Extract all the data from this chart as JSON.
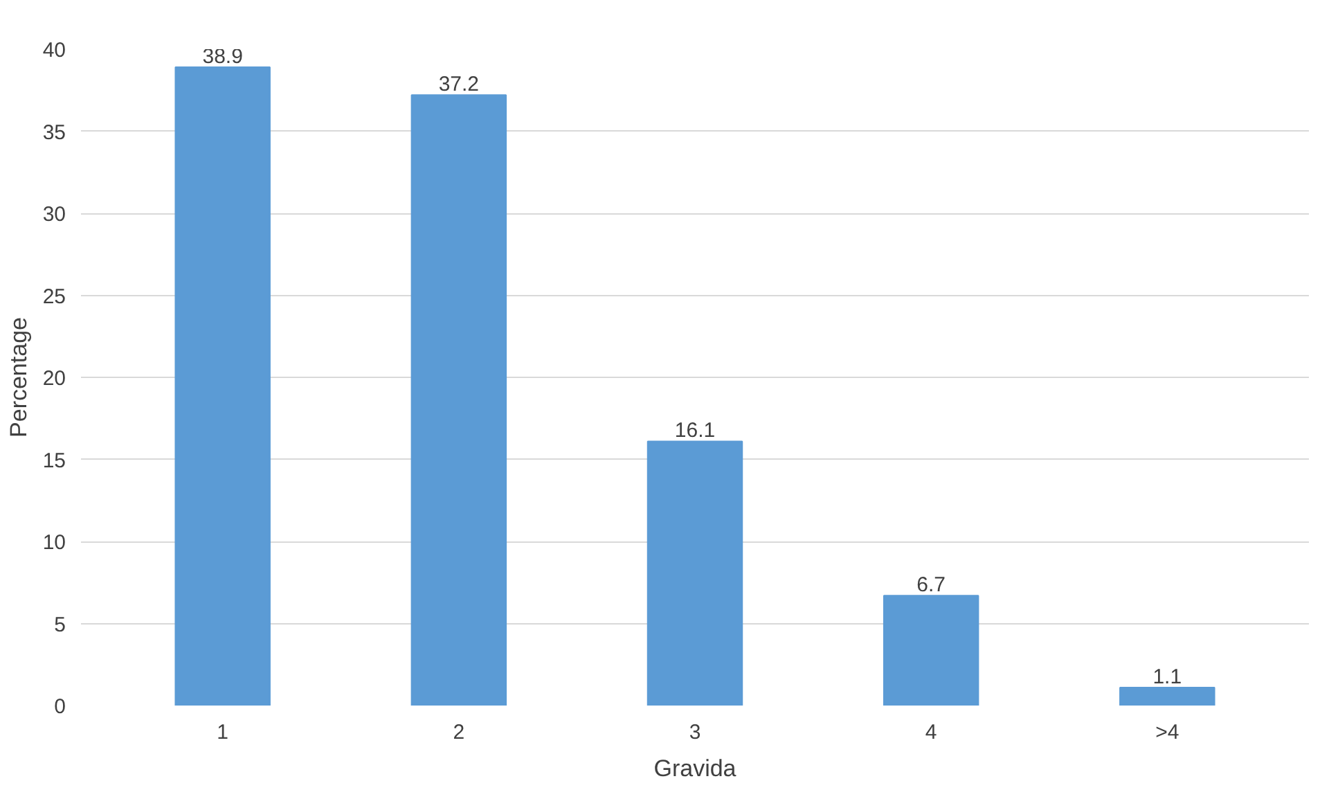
{
  "chart_data": {
    "type": "bar",
    "xlabel": "Gravida",
    "ylabel": "Percentage",
    "categories": [
      "1",
      "2",
      "3",
      "4",
      ">4"
    ],
    "values": [
      38.9,
      37.2,
      16.1,
      6.7,
      1.1
    ],
    "color": "#5b9bd5",
    "ylim": [
      0,
      40
    ],
    "yticks": [
      0,
      5,
      10,
      15,
      20,
      25,
      30,
      35,
      40
    ],
    "grid": "y",
    "data_labels": true
  }
}
